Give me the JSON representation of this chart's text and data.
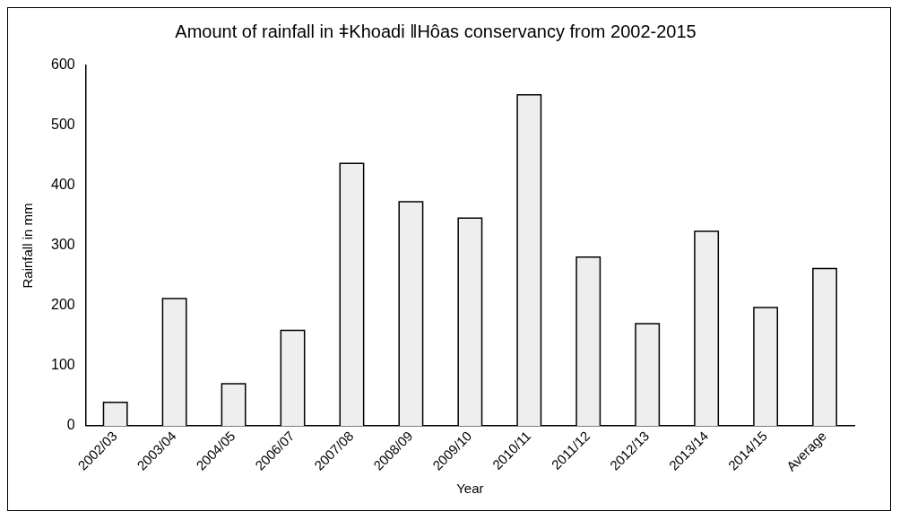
{
  "chart_data": {
    "type": "bar",
    "title": "Amount of rainfall in ǂKhoadi ǁHôas conservancy from 2002-2015",
    "xlabel": "Year",
    "ylabel": "Rainfall in mm",
    "categories": [
      "2002/03",
      "2003/04",
      "2004/05",
      "2006/07",
      "2007/08",
      "2008/09",
      "2009/10",
      "2010/11",
      "2011/12",
      "2012/13",
      "2013/14",
      "2014/15",
      "Average"
    ],
    "values": [
      39,
      212,
      70,
      159,
      437,
      373,
      346,
      551,
      281,
      170,
      324,
      197,
      262
    ],
    "color": "#eeeeee",
    "ylim": [
      0,
      600
    ],
    "yticks": [
      0,
      100,
      200,
      300,
      400,
      500,
      600
    ],
    "grid": false,
    "legend": false
  }
}
